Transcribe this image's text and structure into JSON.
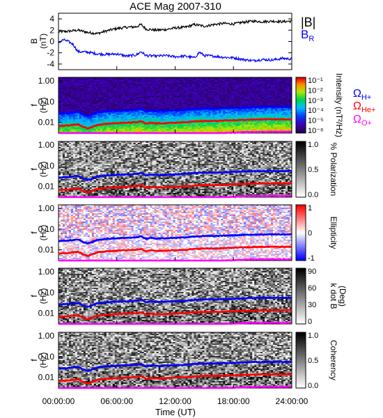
{
  "chart_data": {
    "type": "line",
    "title": "ACE Mag 2007-310",
    "xlabel": "Time (UT)",
    "x_ticks": [
      "00:00:00",
      "06:00:00",
      "12:00:00",
      "18:00:00",
      "24:00:00"
    ],
    "x_range_hours": [
      0,
      24
    ],
    "panels": [
      {
        "id": "field",
        "ylabel": "B",
        "yunit": "(nT)",
        "ylim": [
          -5,
          5
        ],
        "yticks": [
          "4",
          "2",
          "0",
          "-2",
          "-4"
        ],
        "legend": [
          "|B|",
          "B_R"
        ],
        "series": [
          {
            "name": "|B|",
            "color": "#000000",
            "x": [
              0,
              1,
              2,
              3,
              4,
              5,
              6,
              7,
              8,
              8.5,
              9,
              10,
              11,
              12,
              13,
              14,
              15,
              16,
              17,
              18,
              19,
              20,
              21,
              22,
              23,
              24
            ],
            "y": [
              1.7,
              1.8,
              2.0,
              1.6,
              1.4,
              1.9,
              2.3,
              2.5,
              2.6,
              3.0,
              2.2,
              2.0,
              2.1,
              2.4,
              2.5,
              3.0,
              2.7,
              3.0,
              3.2,
              3.1,
              3.4,
              3.6,
              3.5,
              3.6,
              3.5,
              3.6
            ]
          },
          {
            "name": "B_R",
            "color": "#0000ff",
            "x": [
              0,
              0.5,
              1,
              1.5,
              2,
              3,
              4,
              5,
              6,
              7,
              8,
              8.5,
              9,
              10,
              11,
              12,
              13,
              14,
              14.5,
              15,
              16,
              17,
              18,
              19,
              20,
              21,
              22,
              23,
              24
            ],
            "y": [
              -0.2,
              0.3,
              0,
              -0.5,
              -1.8,
              -1.9,
              -2.2,
              -2.3,
              -2.2,
              -2.6,
              -2.4,
              -1.8,
              -2.5,
              -2.6,
              -2.5,
              -2.7,
              -2.6,
              -2.9,
              -1.9,
              -2.5,
              -2.6,
              -2.8,
              -2.9,
              -3.2,
              -3.4,
              -3.2,
              -3.3,
              -3.0,
              -3.1
            ]
          }
        ]
      },
      {
        "id": "intensity",
        "ylabel": "f",
        "yunit": "(Hz)",
        "yscale": "log",
        "ylim": [
          0.003,
          1.5
        ],
        "yticks": [
          "1.00",
          "0.10",
          "0.01"
        ],
        "colorbar": {
          "label": "Intensity (nT²/Hz)",
          "ticks": [
            "10⁻¹",
            "10⁻²",
            "10⁻³",
            "10⁻⁴",
            "10⁻⁵",
            "10⁻⁶"
          ],
          "scale": "rainbow"
        },
        "legend": [
          "Ω_H+",
          "Ω_He+",
          "Ω_O+"
        ]
      },
      {
        "id": "polarization",
        "ylabel": "f",
        "yunit": "(Hz)",
        "yscale": "log",
        "ylim": [
          0.003,
          1.5
        ],
        "yticks": [
          "1.00",
          "0.10",
          "0.01"
        ],
        "colorbar": {
          "label": "% Polarization",
          "ticks": [
            "1.0",
            "0.5",
            "0.0"
          ],
          "scale": "gray"
        }
      },
      {
        "id": "ellipticity",
        "ylabel": "f",
        "yunit": "(Hz)",
        "yscale": "log",
        "ylim": [
          0.003,
          1.5
        ],
        "yticks": [
          "1.00",
          "0.10",
          "0.01"
        ],
        "colorbar": {
          "label": "Ellipticity",
          "ticks": [
            "1",
            "0",
            "-1"
          ],
          "scale": "redwhiteblue"
        }
      },
      {
        "id": "kdotb",
        "ylabel": "f",
        "yunit": "(Hz)",
        "yscale": "log",
        "ylim": [
          0.003,
          1.5
        ],
        "yticks": [
          "1.00",
          "0.10",
          "0.01"
        ],
        "colorbar": {
          "label": "k dot B",
          "unit": "(Deg)",
          "ticks": [
            "90",
            "60",
            "30",
            "0"
          ],
          "scale": "gray"
        }
      },
      {
        "id": "coherency",
        "ylabel": "f",
        "yunit": "(Hz)",
        "yscale": "log",
        "ylim": [
          0.003,
          1.5
        ],
        "yticks": [
          "1.00",
          "0.10",
          "0.01"
        ],
        "colorbar": {
          "label": "Coherency",
          "ticks": [
            "1.0",
            "0.5",
            "0.0"
          ],
          "scale": "gray"
        }
      }
    ],
    "gyrofrequencies": [
      {
        "name": "Ω_H+",
        "color": "#0000ff",
        "x": [
          0,
          1,
          2,
          2.5,
          3,
          3.5,
          4,
          5,
          6,
          7,
          8,
          8.5,
          9,
          9.5,
          10,
          11,
          12,
          13,
          14,
          15,
          16,
          17,
          18,
          19,
          20,
          21,
          22,
          23,
          24
        ],
        "y": [
          0.026,
          0.028,
          0.032,
          0.024,
          0.02,
          0.024,
          0.03,
          0.034,
          0.036,
          0.038,
          0.04,
          0.045,
          0.033,
          0.038,
          0.035,
          0.036,
          0.038,
          0.04,
          0.044,
          0.046,
          0.046,
          0.048,
          0.05,
          0.052,
          0.054,
          0.055,
          0.056,
          0.055,
          0.056
        ]
      },
      {
        "name": "Ω_He+",
        "color": "#ff0000",
        "x": [
          0,
          1,
          2,
          2.5,
          3,
          3.5,
          4,
          5,
          6,
          7,
          8,
          8.5,
          9,
          9.5,
          10,
          11,
          12,
          13,
          14,
          15,
          16,
          17,
          18,
          19,
          20,
          21,
          22,
          23,
          24
        ],
        "y": [
          0.0065,
          0.007,
          0.008,
          0.006,
          0.005,
          0.006,
          0.0075,
          0.0085,
          0.009,
          0.0095,
          0.01,
          0.0112,
          0.0083,
          0.0095,
          0.0088,
          0.009,
          0.0095,
          0.01,
          0.011,
          0.0115,
          0.0115,
          0.012,
          0.0125,
          0.013,
          0.0135,
          0.0138,
          0.014,
          0.0138,
          0.014
        ]
      },
      {
        "name": "Ω_O+",
        "color": "#ff00ff",
        "x": [
          0,
          1,
          2,
          3,
          4,
          5,
          6,
          7,
          8,
          9,
          10,
          11,
          12,
          13,
          14,
          15,
          16,
          17,
          18,
          19,
          20,
          21,
          22,
          23,
          24
        ],
        "y": [
          0.0016,
          0.0018,
          0.002,
          0.0015,
          0.0019,
          0.0021,
          0.0022,
          0.0024,
          0.0025,
          0.0021,
          0.0022,
          0.0022,
          0.0024,
          0.0025,
          0.0027,
          0.0029,
          0.0029,
          0.003,
          0.0031,
          0.0033,
          0.0034,
          0.0034,
          0.0035,
          0.0034,
          0.0035
        ]
      }
    ]
  }
}
